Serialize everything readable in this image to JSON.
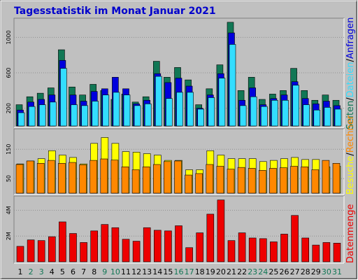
{
  "title": "Tagesstatistik im Monat Januar 2021",
  "colors": {
    "background": "#c0c0c0",
    "title_text": "#0000cc",
    "anfragen": "#117755",
    "seiten": "#0000dd",
    "dateien": "#33ddff",
    "besuche": "#ffff00",
    "rechner": "#ff8800",
    "datenmenge": "#ee0000",
    "weekend_label": "#117755",
    "weekday_label": "#000000"
  },
  "right_labels": {
    "top": [
      "Anfragen",
      "/",
      "Dateien",
      "/",
      "Seiten"
    ],
    "middle": [
      "Rechner",
      "/",
      "Besuche"
    ],
    "bottom": "Datenmenge"
  },
  "chart_data": [
    {
      "type": "bar",
      "panel": "top",
      "categories": [
        "1",
        "2",
        "3",
        "4",
        "5",
        "6",
        "7",
        "8",
        "9",
        "10",
        "11",
        "12",
        "13",
        "14",
        "15",
        "16",
        "17",
        "18",
        "19",
        "20",
        "21",
        "22",
        "23",
        "24",
        "25",
        "26",
        "27",
        "28",
        "29",
        "30",
        "31"
      ],
      "weekend_categories": [
        "2",
        "3",
        "9",
        "10",
        "16",
        "17",
        "23",
        "24",
        "30",
        "31"
      ],
      "ylim": [
        0,
        1200
      ],
      "yticks": [
        "200",
        "600",
        "1000"
      ],
      "series": [
        {
          "name": "Anfragen",
          "values": [
            240,
            330,
            370,
            430,
            860,
            440,
            350,
            470,
            400,
            300,
            360,
            270,
            330,
            730,
            550,
            660,
            520,
            240,
            420,
            690,
            1170,
            400,
            550,
            300,
            360,
            400,
            650,
            400,
            290,
            350,
            290
          ]
        },
        {
          "name": "Seiten",
          "values": [
            180,
            270,
            300,
            350,
            740,
            350,
            280,
            390,
            420,
            550,
            420,
            250,
            290,
            590,
            490,
            540,
            450,
            200,
            350,
            590,
            1050,
            290,
            430,
            240,
            310,
            350,
            500,
            310,
            250,
            280,
            230
          ]
        },
        {
          "name": "Dateien",
          "values": [
            150,
            220,
            240,
            270,
            650,
            240,
            230,
            280,
            350,
            380,
            350,
            230,
            250,
            560,
            310,
            380,
            380,
            190,
            320,
            540,
            920,
            230,
            330,
            220,
            290,
            290,
            460,
            240,
            180,
            210,
            190
          ]
        }
      ]
    },
    {
      "type": "bar",
      "panel": "middle",
      "categories": [
        "1",
        "2",
        "3",
        "4",
        "5",
        "6",
        "7",
        "8",
        "9",
        "10",
        "11",
        "12",
        "13",
        "14",
        "15",
        "16",
        "17",
        "18",
        "19",
        "20",
        "21",
        "22",
        "23",
        "24",
        "25",
        "26",
        "27",
        "28",
        "29",
        "30",
        "31"
      ],
      "ylim": [
        0,
        215
      ],
      "yticks": [
        "50",
        "150"
      ],
      "series": [
        {
          "name": "Besuche",
          "values": [
            100,
            110,
            118,
            145,
            130,
            122,
            100,
            170,
            190,
            170,
            142,
            140,
            135,
            130,
            112,
            112,
            80,
            80,
            145,
            130,
            118,
            118,
            118,
            108,
            112,
            118,
            122,
            115,
            115,
            90,
            92
          ]
        },
        {
          "name": "Rechner",
          "values": [
            98,
            110,
            102,
            112,
            102,
            105,
            97,
            112,
            117,
            113,
            90,
            80,
            90,
            98,
            108,
            110,
            62,
            67,
            98,
            92,
            82,
            88,
            85,
            78,
            85,
            87,
            92,
            90,
            80,
            112,
            102
          ]
        }
      ]
    },
    {
      "type": "bar",
      "panel": "bottom",
      "categories": [
        "1",
        "2",
        "3",
        "4",
        "5",
        "6",
        "7",
        "8",
        "9",
        "10",
        "11",
        "12",
        "13",
        "14",
        "15",
        "16",
        "17",
        "18",
        "19",
        "20",
        "21",
        "22",
        "23",
        "24",
        "25",
        "26",
        "27",
        "28",
        "29",
        "30",
        "31"
      ],
      "ylim": [
        0,
        5000000
      ],
      "yticks": [
        "2M",
        "4M"
      ],
      "series": [
        {
          "name": "Datenmenge",
          "values": [
            1200000,
            1700000,
            1650000,
            1950000,
            3100000,
            2200000,
            1500000,
            2400000,
            2900000,
            2650000,
            1750000,
            1600000,
            2650000,
            2450000,
            2400000,
            2800000,
            1100000,
            2250000,
            3700000,
            4800000,
            1650000,
            2250000,
            1850000,
            1800000,
            1550000,
            2150000,
            3600000,
            1850000,
            1300000,
            1500000,
            1450000
          ]
        }
      ]
    }
  ]
}
